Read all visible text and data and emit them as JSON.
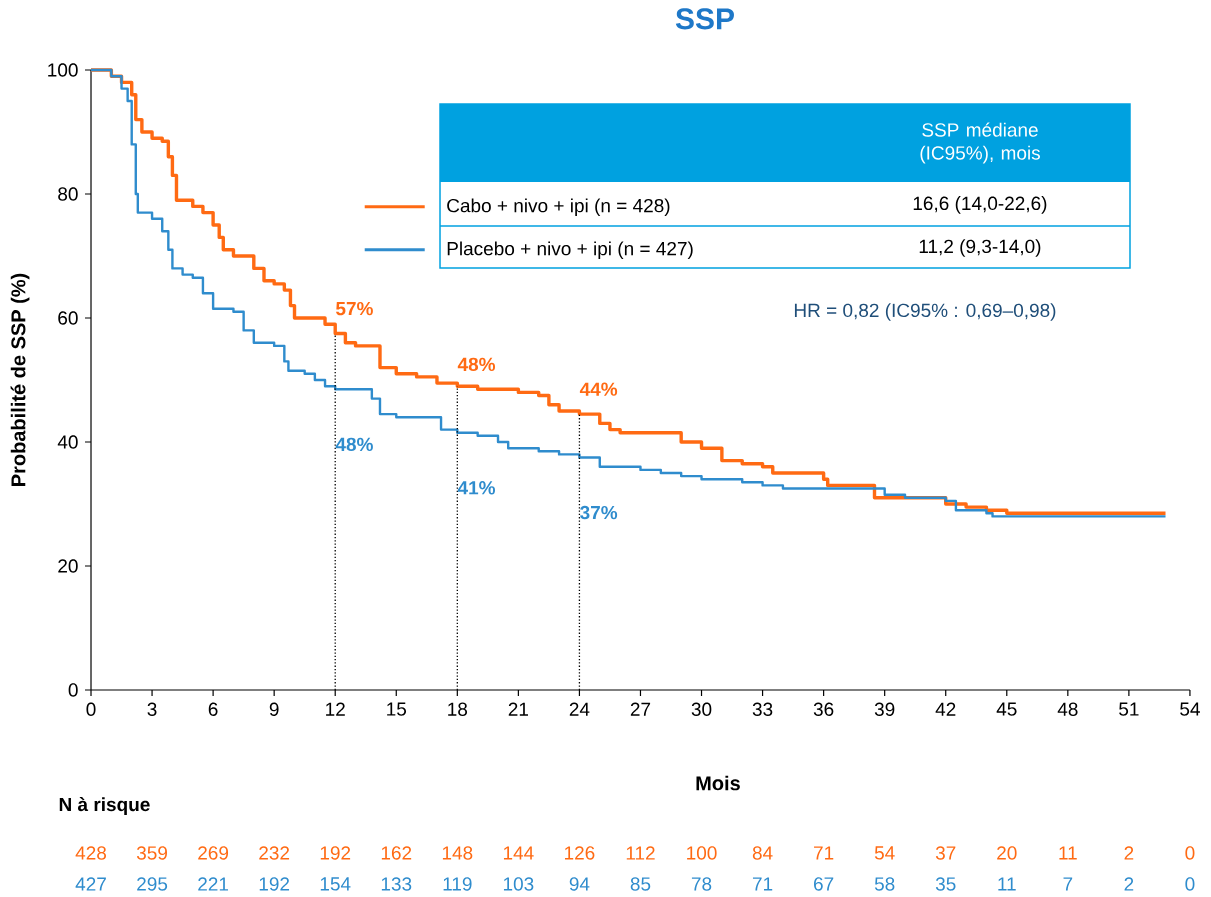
{
  "chart_data": {
    "type": "step",
    "title": "SSP",
    "xlabel": "Mois",
    "ylabel": "Probabilité de SSP (%)",
    "xlim": [
      0,
      54
    ],
    "ylim": [
      0,
      100
    ],
    "xticks": [
      0,
      3,
      6,
      9,
      12,
      15,
      18,
      21,
      24,
      27,
      30,
      33,
      36,
      39,
      42,
      45,
      48,
      51,
      54
    ],
    "yticks": [
      0,
      20,
      40,
      60,
      80,
      100
    ],
    "legend": "top",
    "marker": "none",
    "line_style": "solid",
    "series": [
      {
        "name": "Cabo + nivo + ipi (n = 428)",
        "color": "#ff6a13",
        "x": [
          0,
          0.5,
          1,
          1.5,
          2,
          2.2,
          2.5,
          3,
          3.5,
          3.8,
          4,
          4.2,
          5,
          5.5,
          6,
          6.3,
          6.5,
          7,
          8,
          8.5,
          9,
          9.5,
          9.8,
          10,
          11.5,
          12,
          12.5,
          13,
          14.2,
          15,
          16,
          17,
          18,
          19,
          21,
          22,
          22.5,
          23,
          24,
          25,
          25.5,
          26,
          28,
          29,
          30,
          31,
          32,
          33,
          33.5,
          36,
          36.2,
          38.5,
          39.5,
          42,
          43,
          44,
          45,
          52.8
        ],
        "values": [
          100,
          100,
          99,
          98,
          96,
          92,
          90,
          89,
          88.5,
          86,
          83,
          79,
          78,
          77,
          75,
          73,
          71,
          70,
          68,
          66,
          65.5,
          64.5,
          62,
          60,
          59,
          57.5,
          56,
          55.5,
          52,
          51,
          50.5,
          49.5,
          49,
          48.5,
          48,
          47.5,
          46,
          45,
          44.5,
          43,
          42,
          41.5,
          41.5,
          40,
          39,
          37,
          36.5,
          36,
          35,
          34,
          33,
          31,
          31,
          30,
          29.5,
          29,
          28.5,
          28.5
        ]
      },
      {
        "name": "Placebo + nivo + ipi (n = 427)",
        "color": "#2f8ccd",
        "x": [
          0,
          1,
          1.5,
          1.8,
          2,
          2.2,
          2.3,
          3,
          3.5,
          3.8,
          4,
          4.5,
          5,
          5.5,
          6,
          7,
          7.5,
          8,
          9,
          9.5,
          9.7,
          10.5,
          11,
          11.5,
          12,
          13,
          13.8,
          14.2,
          15,
          17,
          17.2,
          18,
          19,
          20,
          20.5,
          22,
          23,
          24,
          25,
          27,
          28,
          29,
          30,
          32,
          33,
          34,
          38,
          39,
          40,
          42,
          42.5,
          44,
          44.3,
          52.8
        ],
        "values": [
          100,
          99,
          97,
          95,
          88,
          80,
          77,
          76,
          74,
          71,
          68,
          67,
          66.5,
          64,
          61.5,
          61,
          58,
          56,
          55.5,
          53,
          51.5,
          51,
          50,
          49,
          48.5,
          48.5,
          47,
          44.5,
          44,
          44,
          42,
          41.5,
          41,
          40,
          39,
          38.5,
          38,
          37.5,
          36,
          35.5,
          35,
          34.5,
          34,
          33.5,
          33,
          32.5,
          32.5,
          31.5,
          31,
          30.5,
          29,
          28.5,
          28,
          28
        ]
      }
    ],
    "ref_lines": [
      {
        "axis": "x",
        "value": 12,
        "color": "#000000",
        "line_style": "dotted"
      },
      {
        "axis": "x",
        "value": 18,
        "color": "#000000",
        "line_style": "dotted"
      },
      {
        "axis": "x",
        "value": 24,
        "color": "#000000",
        "line_style": "dotted"
      }
    ],
    "annotations": [
      "SSP médiane (IC95%), mois",
      "16,6 (14,0-22,6)",
      "11,2 (9,3-14,0)",
      "HR = 0,82 (IC95% : 0,69–0,98)",
      "N à risque",
      "428",
      "359",
      "269",
      "232",
      "192",
      "162",
      "148",
      "144",
      "126",
      "112",
      "100",
      "84",
      "71",
      "54",
      "37",
      "20",
      "11",
      "2",
      "0",
      "427",
      "295",
      "221",
      "192",
      "154",
      "133",
      "119",
      "103",
      "94",
      "85",
      "78",
      "71",
      "67",
      "58",
      "35",
      "11",
      "7",
      "2",
      "0",
      {
        "text": "57%",
        "x": 12,
        "y": 57
      },
      {
        "text": "48%",
        "x": 12,
        "y": 48
      },
      {
        "text": "48%",
        "x": 18,
        "y": 48
      },
      {
        "text": "41%",
        "x": 18,
        "y": 41
      },
      {
        "text": "44%",
        "x": 24,
        "y": 44
      },
      {
        "text": "37%",
        "x": 24,
        "y": 37
      }
    ]
  }
}
